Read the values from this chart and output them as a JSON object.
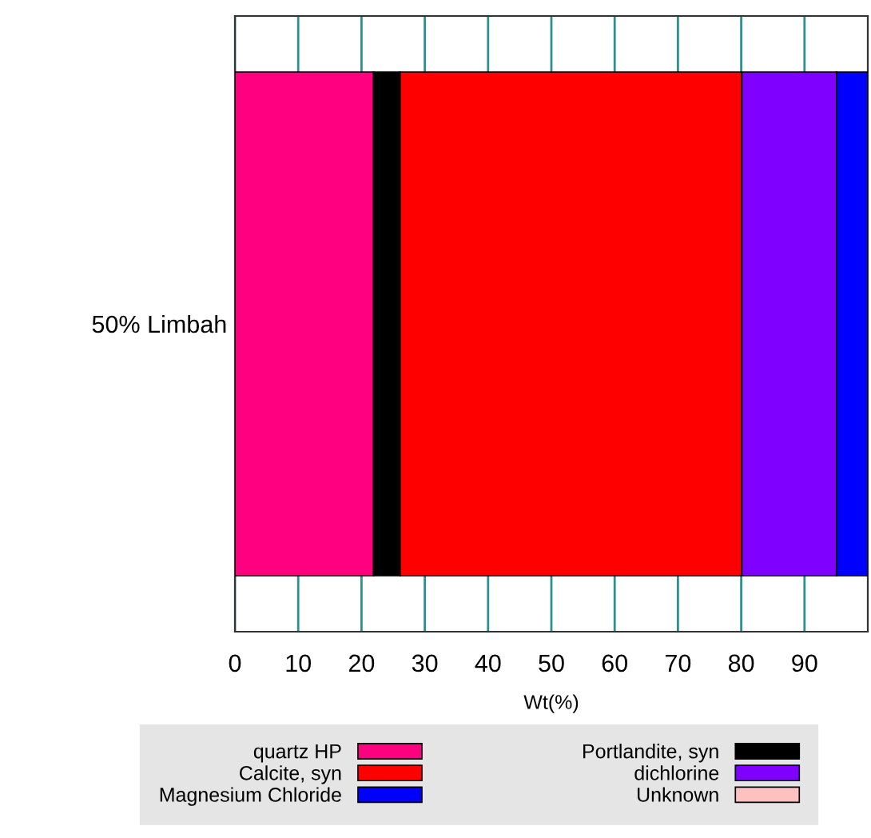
{
  "chart_data": {
    "type": "bar",
    "orientation": "horizontal",
    "stacked": true,
    "categories": [
      "50% Limbah"
    ],
    "xlabel": "Wt(%)",
    "xlim": [
      0,
      100
    ],
    "xticks": [
      0,
      10,
      20,
      30,
      40,
      50,
      60,
      70,
      80,
      90
    ],
    "grid": "x",
    "legend": "bottom",
    "series": [
      {
        "name": "quartz HP",
        "color": "#ff0080",
        "values": [
          21.9
        ]
      },
      {
        "name": "Portlandite, syn",
        "color": "#000000",
        "values": [
          4.2
        ]
      },
      {
        "name": "Calcite, syn",
        "color": "#ff0000",
        "values": [
          54.0
        ]
      },
      {
        "name": "dichlorine",
        "color": "#8000ff",
        "values": [
          15.0
        ]
      },
      {
        "name": "Magnesium Chloride",
        "color": "#0000ff",
        "values": [
          4.9
        ]
      },
      {
        "name": "Unknown",
        "color": "#ffc0c0",
        "values": [
          null
        ]
      }
    ]
  }
}
